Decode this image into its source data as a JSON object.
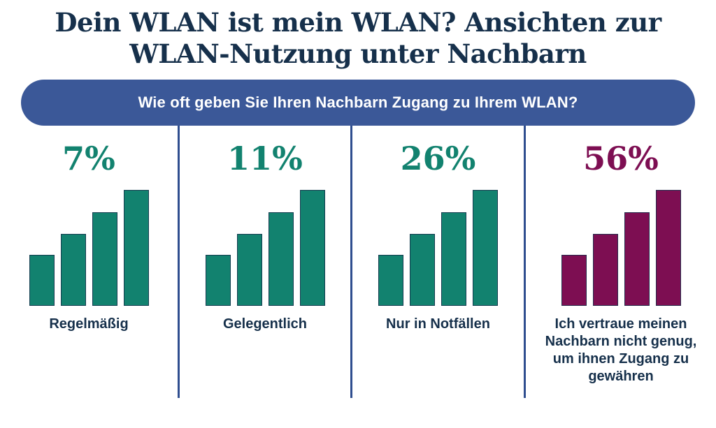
{
  "title": {
    "lines": [
      "Dein WLAN ist mein WLAN? Ansichten zur",
      "WLAN-Nutzung unter Nachbarn"
    ],
    "color": "#16304B"
  },
  "question_banner": {
    "text": "Wie oft geben Sie Ihren Nachbarn Zugang zu Ihrem WLAN?",
    "background": "#3B5898",
    "text_color": "#ffffff"
  },
  "chart_data": {
    "type": "bar",
    "title": "Wie oft geben Sie Ihren Nachbarn Zugang zu Ihrem WLAN?",
    "categories": [
      "Regelmäßig",
      "Gelegentlich",
      "Nur in Notfällen",
      "Ich vertraue meinen Nachbarn nicht genug, um ihnen Zugang zu gewähren"
    ],
    "values": [
      7,
      11,
      26,
      56
    ],
    "unit": "%",
    "value_labels": [
      "7%",
      "11%",
      "26%",
      "56%"
    ],
    "bar_colors": [
      "#12826F",
      "#12826F",
      "#12826F",
      "#7D0E52"
    ],
    "legend": "none",
    "grid": false,
    "icon_bar_heights_pct": [
      44,
      62,
      81,
      100
    ]
  },
  "columns": [
    {
      "percent": "7%",
      "label": "Regelmäßig",
      "accent": "#12826F"
    },
    {
      "percent": "11%",
      "label": "Gelegentlich",
      "accent": "#12826F"
    },
    {
      "percent": "26%",
      "label": "Nur in Notfällen",
      "accent": "#12826F"
    },
    {
      "percent": "56%",
      "label": "Ich vertraue meinen Nachbarn nicht genug, um ihnen Zugang zu gewähren",
      "accent": "#7D0E52"
    }
  ],
  "colors": {
    "background": "#ffffff",
    "title_navy": "#16304B",
    "banner_blue": "#3B5898",
    "divider_blue": "#2F4E8F",
    "teal": "#12826F",
    "magenta": "#7D0E52",
    "bar_outline": "#16304B"
  }
}
